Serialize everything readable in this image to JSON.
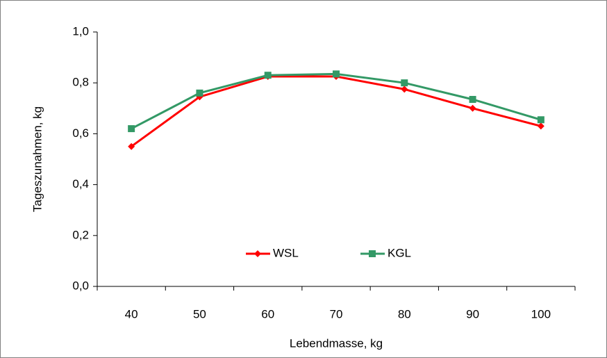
{
  "chart_data": {
    "type": "line",
    "x_label": "Lebendmasse, kg",
    "y_label": "Tageszunahmen, kg",
    "categories": [
      "40",
      "50",
      "60",
      "70",
      "80",
      "90",
      "100"
    ],
    "series": [
      {
        "name": "WSL",
        "color": "#ff0000",
        "marker": "diamond",
        "values": [
          0.55,
          0.745,
          0.825,
          0.825,
          0.775,
          0.7,
          0.63
        ]
      },
      {
        "name": "KGL",
        "color": "#339966",
        "marker": "square",
        "values": [
          0.62,
          0.76,
          0.83,
          0.835,
          0.8,
          0.735,
          0.655
        ]
      }
    ],
    "ylim": [
      0,
      1.0
    ],
    "yticks": [
      {
        "value": 0,
        "label": "0,0"
      },
      {
        "value": 0.2,
        "label": "0,2"
      },
      {
        "value": 0.4,
        "label": "0,4"
      },
      {
        "value": 0.6,
        "label": "0,6"
      },
      {
        "value": 0.8,
        "label": "0,8"
      },
      {
        "value": 1.0,
        "label": "1,0"
      }
    ],
    "grid": false,
    "legend": "lower center"
  }
}
